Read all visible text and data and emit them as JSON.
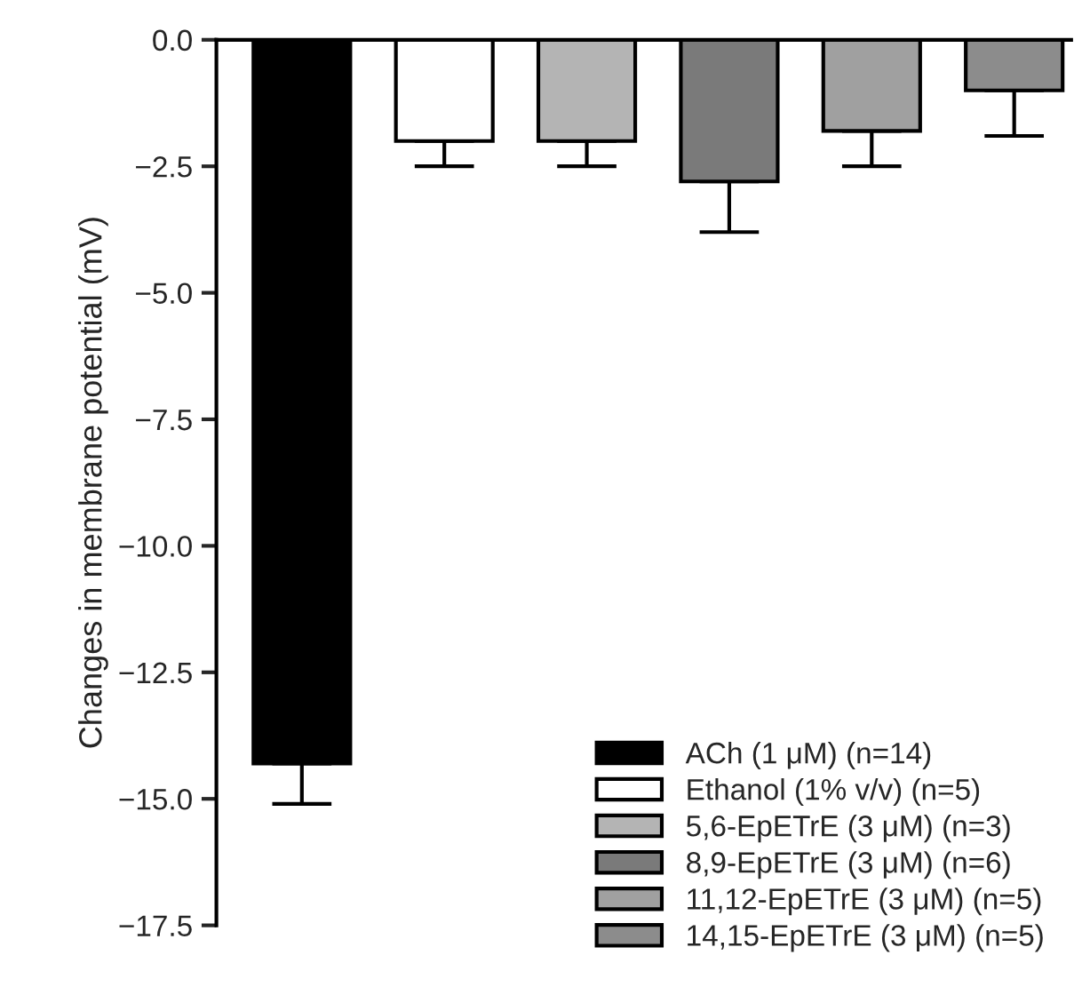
{
  "chart_data": {
    "type": "bar",
    "ylabel": "Changes in membrane potential (mV)",
    "categories": [
      null,
      null,
      null,
      null,
      null,
      null
    ],
    "series": [
      {
        "name": "ACh (1 μM) (n=14)",
        "color": "#000000",
        "values": [
          -14.3,
          null,
          null,
          null,
          null,
          null
        ],
        "errors": [
          [
            -15.1,
            -14.3
          ],
          null,
          null,
          null,
          null,
          null
        ]
      },
      {
        "name": "Ethanol (1% v/v) (n=5)",
        "color": "#ffffff",
        "values": [
          null,
          -2.0,
          null,
          null,
          null,
          null
        ],
        "errors": [
          null,
          [
            -2.5,
            -2.0
          ],
          null,
          null,
          null,
          null
        ]
      },
      {
        "name": "5,6-EpETrE (3 μM) (n=3)",
        "color": "#b4b4b4",
        "values": [
          null,
          null,
          -2.0,
          null,
          null,
          null
        ],
        "errors": [
          null,
          null,
          [
            -2.5,
            -2.0
          ],
          null,
          null,
          null
        ]
      },
      {
        "name": "8,9-EpETrE (3 μM) (n=6)",
        "color": "#7a7a7a",
        "values": [
          null,
          null,
          null,
          -2.8,
          null,
          null
        ],
        "errors": [
          null,
          null,
          null,
          [
            -3.8,
            -2.8
          ],
          null,
          null
        ]
      },
      {
        "name": "11,12-EpETrE (3 μM) (n=5)",
        "color": "#a0a0a0",
        "values": [
          null,
          null,
          null,
          null,
          -1.8,
          null
        ],
        "errors": [
          null,
          null,
          null,
          null,
          [
            -2.5,
            -1.8
          ],
          null
        ]
      },
      {
        "name": "14,15-EpETrE (3 μM) (n=5)",
        "color": "#8c8c8c",
        "values": [
          null,
          null,
          null,
          null,
          null,
          -1.0
        ],
        "errors": [
          null,
          null,
          null,
          null,
          null,
          [
            -1.9,
            -1.0
          ]
        ]
      }
    ],
    "ylim": [
      -17.5,
      0
    ],
    "yticks": [
      {
        "value": 0,
        "label": "0.0"
      },
      {
        "value": -2.5,
        "label": "−2.5"
      },
      {
        "value": -5,
        "label": "−5.0"
      },
      {
        "value": -7.5,
        "label": "−7.5"
      },
      {
        "value": -10,
        "label": "−10.0"
      },
      {
        "value": -12.5,
        "label": "−12.5"
      },
      {
        "value": -15,
        "label": "−15.0"
      },
      {
        "value": -17.5,
        "label": "−17.5"
      }
    ],
    "grid": false,
    "legend": "bottom right"
  }
}
